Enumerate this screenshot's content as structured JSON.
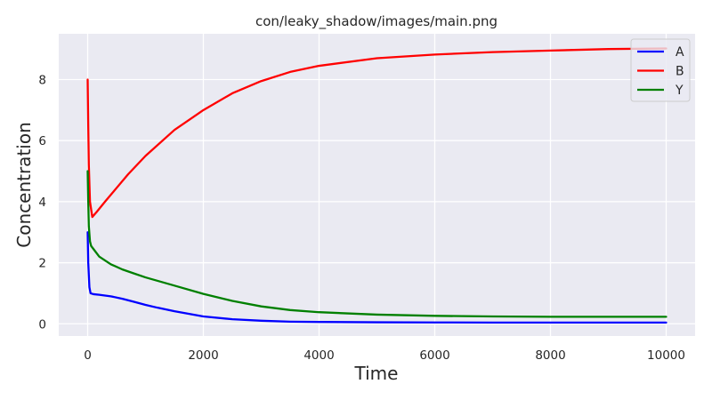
{
  "chart_data": {
    "type": "line",
    "title": "con/leaky_shadow/images/main.png",
    "xlabel": "Time",
    "ylabel": "Concentration",
    "xlim": [
      -500,
      10500
    ],
    "ylim": [
      -0.4,
      9.5
    ],
    "xticks": [
      0,
      2000,
      4000,
      6000,
      8000,
      10000
    ],
    "xtick_labels": [
      "0",
      "2000",
      "4000",
      "6000",
      "8000",
      "10000"
    ],
    "yticks": [
      0,
      2,
      4,
      6,
      8
    ],
    "ytick_labels": [
      "0",
      "2",
      "4",
      "6",
      "8"
    ],
    "grid": true,
    "legend_position": "top-right",
    "series": [
      {
        "name": "A",
        "color": "#0000ff",
        "x": [
          0,
          10,
          30,
          50,
          100,
          200,
          400,
          600,
          800,
          1000,
          1200,
          1500,
          2000,
          2500,
          3000,
          3500,
          4000,
          5000,
          6000,
          7000,
          8000,
          9000,
          10000
        ],
        "y": [
          3.0,
          2.0,
          1.2,
          1.0,
          0.97,
          0.95,
          0.9,
          0.82,
          0.72,
          0.62,
          0.53,
          0.41,
          0.24,
          0.15,
          0.1,
          0.07,
          0.06,
          0.05,
          0.045,
          0.04,
          0.04,
          0.04,
          0.04
        ]
      },
      {
        "name": "B",
        "color": "#ff0000",
        "x": [
          0,
          10,
          20,
          40,
          80,
          150,
          300,
          500,
          700,
          1000,
          1500,
          2000,
          2500,
          3000,
          3500,
          4000,
          5000,
          6000,
          7000,
          8000,
          9000,
          10000
        ],
        "y": [
          8.0,
          6.5,
          5.2,
          4.0,
          3.5,
          3.65,
          4.0,
          4.45,
          4.9,
          5.5,
          6.35,
          7.0,
          7.55,
          7.95,
          8.25,
          8.45,
          8.7,
          8.82,
          8.9,
          8.95,
          9.0,
          9.02
        ]
      },
      {
        "name": "Y",
        "color": "#008000",
        "x": [
          0,
          10,
          20,
          40,
          60,
          100,
          200,
          400,
          600,
          800,
          1000,
          1500,
          2000,
          2500,
          3000,
          3500,
          4000,
          5000,
          6000,
          7000,
          8000,
          9000,
          10000
        ],
        "y": [
          5.0,
          4.0,
          3.2,
          2.7,
          2.55,
          2.45,
          2.2,
          1.95,
          1.78,
          1.65,
          1.52,
          1.25,
          0.98,
          0.75,
          0.57,
          0.45,
          0.38,
          0.3,
          0.26,
          0.24,
          0.23,
          0.23,
          0.23
        ]
      }
    ]
  }
}
